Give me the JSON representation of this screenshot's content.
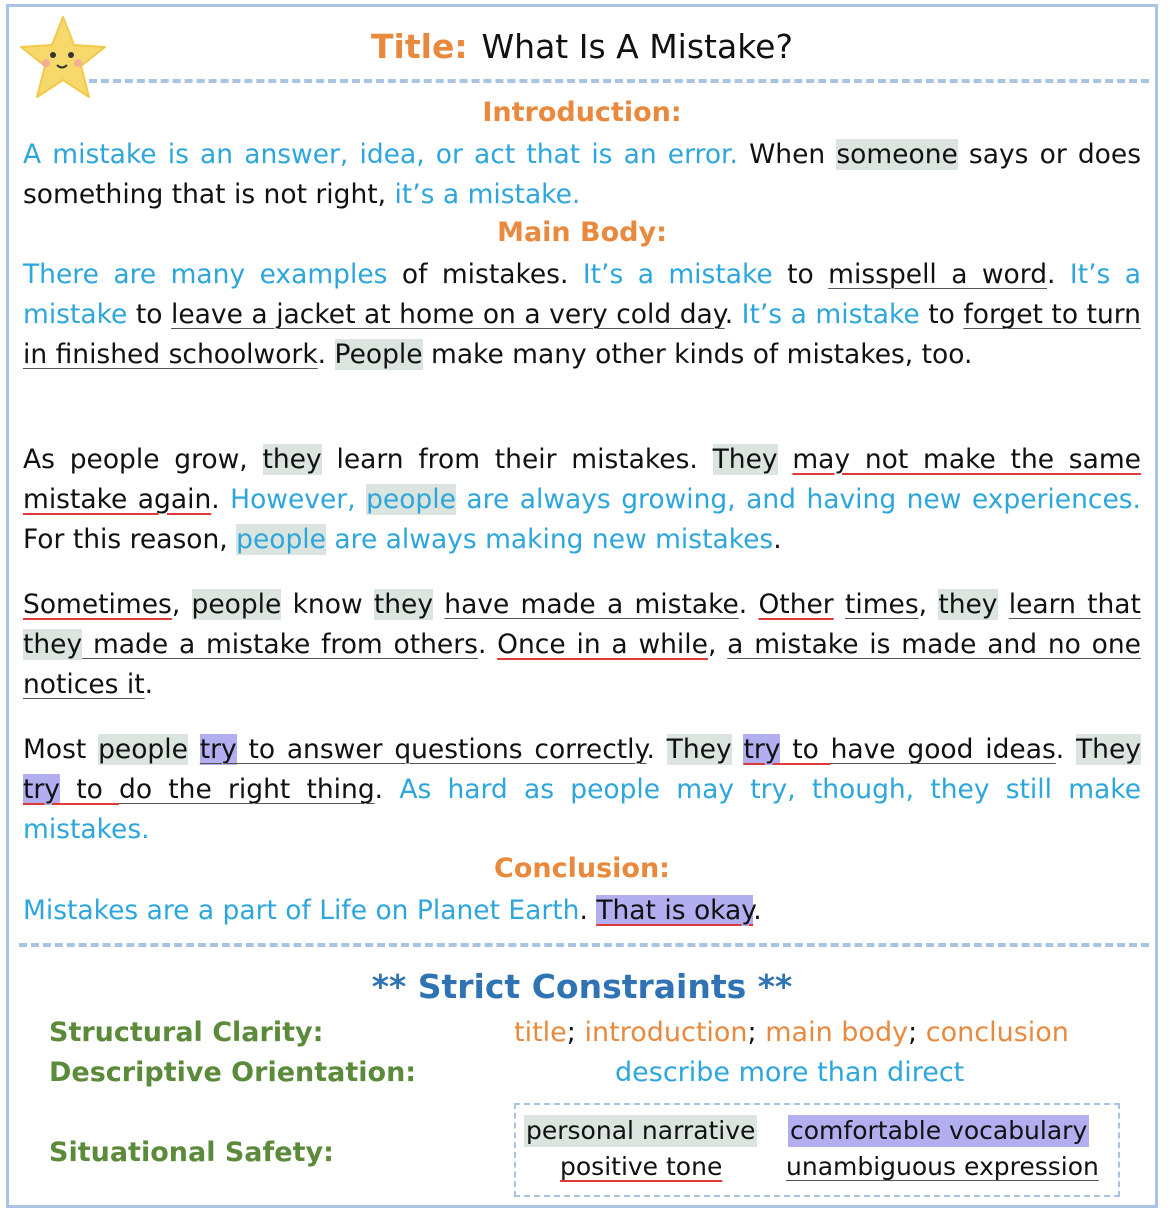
{
  "title": {
    "label": "Title:",
    "text": "What Is A Mistake?"
  },
  "sections": {
    "introduction": "Introduction:",
    "main_body": "Main Body:",
    "conclusion": "Conclusion:"
  },
  "intro": {
    "s1": "A mistake is an answer, idea, or act that is an error.",
    "s2a": " When ",
    "s2_someone": "someone",
    "s2b": " says or does something that is not right, ",
    "s2c": "it’s a mistake."
  },
  "body1": {
    "a": "There are many examples",
    "b": " of mistakes. ",
    "c": "It’s a mistake",
    "d": " to ",
    "e": "misspell a word",
    "f": ". ",
    "g": "It’s a mistake",
    "h": " to ",
    "i": "leave a jacket at home on a very cold day",
    "j": ". ",
    "k": "It’s a mistake",
    "l": " to ",
    "m": "forget to turn in finished schoolwork",
    "n": ". ",
    "o": "People",
    "p": " make many other kinds of mistakes, too."
  },
  "body2": {
    "a": "As people grow, ",
    "b": "they",
    "c": " learn from their mistakes. ",
    "d": "They",
    "e": " ",
    "f": "may not make the same mistake again",
    "g": ". ",
    "h": "However, ",
    "i": "people",
    "j": " are always growing, and having new experiences.",
    "k": " For this reason, ",
    "l": "people",
    "m": " are always making new mistakes",
    "n": "."
  },
  "body3": {
    "a": "Sometimes",
    "b": ", ",
    "c": "people",
    "d": " know ",
    "e": "they",
    "f": " ",
    "g": "have made a mistake",
    "h": ". ",
    "i": "Other",
    "j": " ",
    "k": "times",
    "l": ", ",
    "m": "they",
    "n": " ",
    "o": "learn that",
    "p": " ",
    "q": "they",
    "r": " made a mistake from others",
    "s": ". ",
    "t": "Once in a while",
    "u": ", ",
    "v": "a mistake is made and no one notices it",
    "w": "."
  },
  "body4": {
    "a": "Most ",
    "b": "people",
    "c": " ",
    "d": "try",
    "e": " to answer questions correctly",
    "f": ". ",
    "g": "They",
    "h": " ",
    "i": "try",
    "j": " to ",
    "k": "have good ideas",
    "l": ". ",
    "m": "They",
    "n": " ",
    "o": "try",
    "p": " to ",
    "q": "do the right thing",
    "r": ". ",
    "s": "As hard as people may try, though, they still make mistakes."
  },
  "conclusion": {
    "a": "Mistakes are a part of Life on Planet Earth",
    "b": ". ",
    "c": "That is okay",
    "d": "."
  },
  "constraints": {
    "title": "** Strict Constraints **",
    "structural": {
      "label": "Structural Clarity:",
      "v1": "title",
      "v2": "introduction",
      "v3": "main body",
      "v4": "conclusion",
      "sep": ";"
    },
    "descriptive": {
      "label": "Descriptive Orientation:",
      "value": "describe more than direct"
    },
    "situational": {
      "label": "Situational Safety:",
      "t1": "personal narrative",
      "t2": "comfortable vocabulary",
      "t3": "positive tone",
      "t4": "unambiguous expression"
    }
  },
  "colors": {
    "orange": "#e8893e",
    "blue": "#2ca6dc",
    "green": "#5b8a3a",
    "navy": "#2f73b5",
    "highlight_gray": "#dbe4de",
    "highlight_purple": "#b3aef0"
  }
}
